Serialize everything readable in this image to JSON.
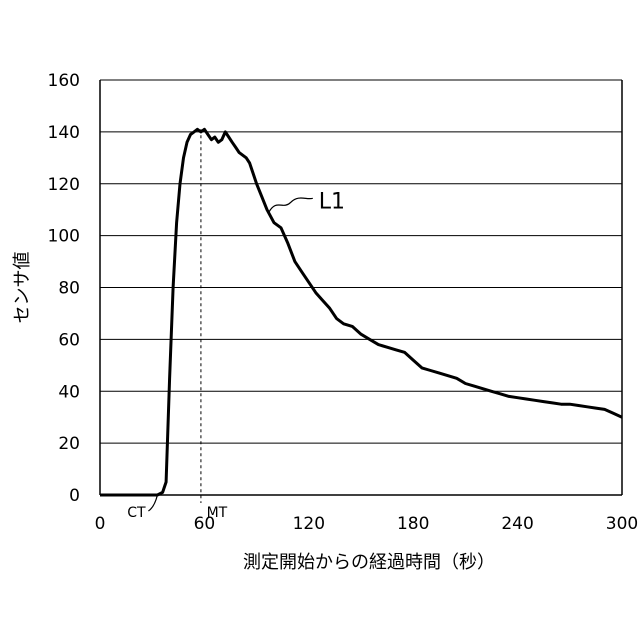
{
  "chart_data": {
    "type": "line",
    "title": "",
    "xlabel": "測定開始からの経過時間（秒）",
    "ylabel": "センサ値",
    "xlim": [
      0,
      300
    ],
    "ylim": [
      0,
      160
    ],
    "xticks": [
      0,
      60,
      120,
      180,
      240,
      300
    ],
    "yticks": [
      0,
      20,
      40,
      60,
      80,
      100,
      120,
      140,
      160
    ],
    "grid": "horizontal",
    "legend": "none",
    "series": [
      {
        "name": "L1",
        "x": [
          0,
          30,
          33,
          36,
          38,
          40,
          42,
          44,
          46,
          48,
          50,
          52,
          54,
          56,
          58,
          60,
          62,
          64,
          66,
          68,
          70,
          72,
          74,
          76,
          78,
          80,
          82,
          84,
          86,
          88,
          90,
          93,
          96,
          100,
          104,
          108,
          112,
          116,
          120,
          124,
          128,
          132,
          136,
          140,
          145,
          150,
          155,
          160,
          165,
          170,
          175,
          180,
          185,
          190,
          195,
          200,
          205,
          210,
          215,
          220,
          225,
          230,
          235,
          240,
          245,
          250,
          255,
          260,
          265,
          270,
          275,
          280,
          285,
          290,
          295,
          300
        ],
        "y": [
          0,
          0,
          0,
          1,
          5,
          45,
          80,
          105,
          120,
          130,
          136,
          139,
          140,
          141,
          140,
          141,
          139,
          137,
          138,
          136,
          137,
          140,
          138,
          136,
          134,
          132,
          131,
          130,
          128,
          124,
          120,
          115,
          110,
          105,
          103,
          97,
          90,
          86,
          82,
          78,
          75,
          72,
          68,
          66,
          65,
          62,
          60,
          58,
          57,
          56,
          55,
          52,
          49,
          48,
          47,
          46,
          45,
          43,
          42,
          41,
          40,
          39,
          38,
          37.5,
          37,
          36.5,
          36,
          35.5,
          35,
          35,
          34.5,
          34,
          33.5,
          33,
          31.5,
          30
        ]
      }
    ],
    "annotations": [
      {
        "label": "CT",
        "x": 33
      },
      {
        "label": "MT",
        "x": 58
      },
      {
        "label": "L1"
      }
    ]
  }
}
